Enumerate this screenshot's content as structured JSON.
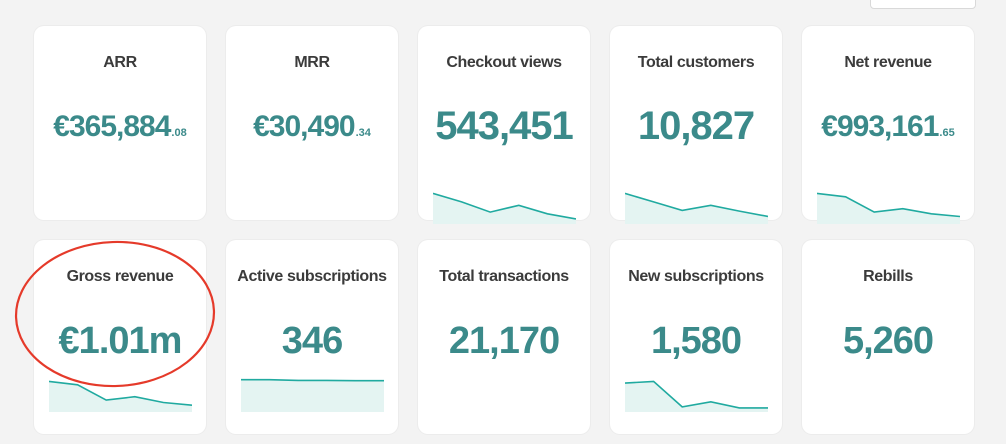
{
  "colors": {
    "accent": "#3b8a8a",
    "spark_line": "#20aaa0",
    "spark_fill": "#e4f4f2",
    "annotation": "#e53a2a"
  },
  "cards": [
    {
      "key": "arr",
      "title": "ARR",
      "value": "€365,884",
      "cents": ".08",
      "sparkline": null
    },
    {
      "key": "mrr",
      "title": "MRR",
      "value": "€30,490",
      "cents": ".34",
      "sparkline": null
    },
    {
      "key": "checkout_views",
      "title": "Checkout views",
      "value": "543,451",
      "cents": "",
      "sparkline": [
        0.9,
        0.65,
        0.35,
        0.55,
        0.3,
        0.15
      ]
    },
    {
      "key": "total_customers",
      "title": "Total customers",
      "value": "10,827",
      "cents": "",
      "sparkline": [
        0.9,
        0.65,
        0.4,
        0.55,
        0.38,
        0.22
      ]
    },
    {
      "key": "net_revenue",
      "title": "Net revenue",
      "value": "€993,161",
      "cents": ".65",
      "sparkline": [
        0.9,
        0.8,
        0.35,
        0.45,
        0.3,
        0.22
      ]
    },
    {
      "key": "gross_revenue",
      "title": "Gross revenue",
      "value": "€1.01m",
      "cents": "",
      "sparkline": [
        0.9,
        0.8,
        0.35,
        0.45,
        0.28,
        0.2
      ]
    },
    {
      "key": "active_subscriptions",
      "title": "Active subscriptions",
      "value": "346",
      "cents": "",
      "sparkline": [
        0.95,
        0.95,
        0.93,
        0.93,
        0.92,
        0.92
      ]
    },
    {
      "key": "total_transactions",
      "title": "Total transactions",
      "value": "21,170",
      "cents": "",
      "sparkline": null
    },
    {
      "key": "new_subscriptions",
      "title": "New subscriptions",
      "value": "1,580",
      "cents": "",
      "sparkline": [
        0.85,
        0.9,
        0.15,
        0.3,
        0.12,
        0.12
      ]
    },
    {
      "key": "rebills",
      "title": "Rebills",
      "value": "5,260",
      "cents": "",
      "sparkline": null
    }
  ]
}
